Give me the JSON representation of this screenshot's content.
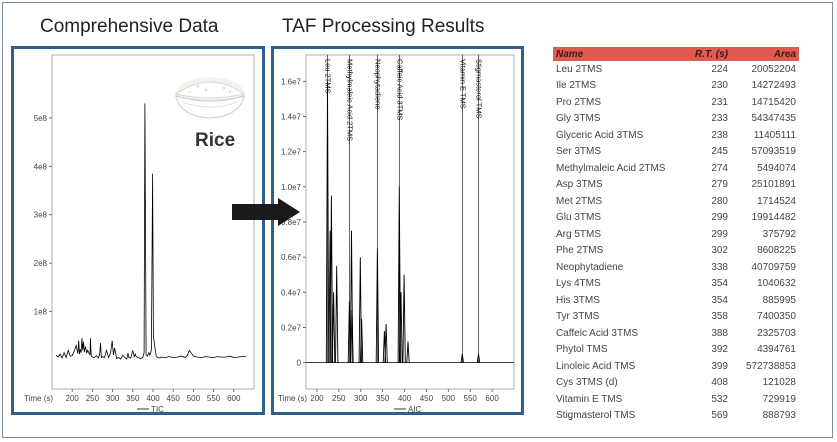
{
  "left_panel": {
    "title": "Comprehensive Data",
    "legend": "TIC",
    "label": "Rice"
  },
  "right_panel": {
    "title": "TAF Processing Results",
    "legend": "AIC"
  },
  "table": {
    "headers": {
      "name": "Name",
      "rt": "R.T. (s)",
      "area": "Area"
    },
    "rows": [
      {
        "name": "Leu 2TMS",
        "rt": "224",
        "area": "20052204"
      },
      {
        "name": "Ile 2TMS",
        "rt": "230",
        "area": "14272493"
      },
      {
        "name": "Pro 2TMS",
        "rt": "231",
        "area": "14715420"
      },
      {
        "name": "Gly 3TMS",
        "rt": "233",
        "area": "54347435"
      },
      {
        "name": "Glyceric Acid 3TMS",
        "rt": "238",
        "area": "11405111"
      },
      {
        "name": "Ser 3TMS",
        "rt": "245",
        "area": "57093519"
      },
      {
        "name": "Methylmaleic Acid 2TMS",
        "rt": "274",
        "area": "5494074"
      },
      {
        "name": "Asp 3TMS",
        "rt": "279",
        "area": "25101891"
      },
      {
        "name": "Met 2TMS",
        "rt": "280",
        "area": "1714524"
      },
      {
        "name": "Glu 3TMS",
        "rt": "299",
        "area": "19914482"
      },
      {
        "name": "Arg 5TMS",
        "rt": "299",
        "area": "375792"
      },
      {
        "name": "Phe 2TMS",
        "rt": "302",
        "area": "8608225"
      },
      {
        "name": "Neophytadiene",
        "rt": "338",
        "area": "40709759"
      },
      {
        "name": "Lys 4TMS",
        "rt": "354",
        "area": "1040632"
      },
      {
        "name": "His 3TMS",
        "rt": "354",
        "area": "885995"
      },
      {
        "name": "Tyr 3TMS",
        "rt": "358",
        "area": "7400350"
      },
      {
        "name": "Caffeic Acid 3TMS",
        "rt": "388",
        "area": "2325703"
      },
      {
        "name": "Phytol TMS",
        "rt": "392",
        "area": "4394761"
      },
      {
        "name": "Linoleic Acid TMS",
        "rt": "399",
        "area": "572738853"
      },
      {
        "name": "Cys 3TMS (d)",
        "rt": "408",
        "area": "121028"
      },
      {
        "name": "Vitamin E TMS",
        "rt": "532",
        "area": "729919"
      },
      {
        "name": "Stigmasterol TMS",
        "rt": "569",
        "area": "888793"
      }
    ]
  },
  "chart_data": [
    {
      "type": "line",
      "title": "Comprehensive Data",
      "xlabel": "Time (s)",
      "ylabel": "",
      "xlim": [
        150,
        650
      ],
      "ylim": [
        -60000000.0,
        630000000.0
      ],
      "x_ticks": [
        200,
        250,
        300,
        350,
        400,
        450,
        500,
        550,
        600
      ],
      "y_ticks": [
        {
          "value": 100000000.0,
          "label": "1e8"
        },
        {
          "value": 200000000.0,
          "label": "2e8"
        },
        {
          "value": 300000000.0,
          "label": "3e8"
        },
        {
          "value": 400000000.0,
          "label": "4e8"
        },
        {
          "value": 500000000.0,
          "label": "5e8"
        }
      ],
      "legend": "TIC",
      "legend_position": "bottom-center",
      "series": [
        {
          "name": "TIC",
          "color": "#000000",
          "x": [
            160,
            165,
            170,
            175,
            180,
            185,
            190,
            195,
            200,
            205,
            210,
            214,
            216,
            218,
            220,
            222,
            224,
            226,
            228,
            230,
            233,
            236,
            238,
            241,
            244,
            245,
            247,
            250,
            255,
            260,
            265,
            268,
            270,
            272,
            275,
            280,
            285,
            290,
            295,
            299,
            302,
            305,
            310,
            315,
            320,
            325,
            330,
            335,
            338,
            340,
            345,
            350,
            354,
            356,
            358,
            362,
            370,
            375,
            378,
            380,
            383,
            386,
            388,
            390,
            392,
            394,
            396,
            399,
            401,
            404,
            408,
            412,
            415,
            420,
            430,
            440,
            450,
            460,
            470,
            480,
            485,
            490,
            495,
            500,
            510,
            520,
            530,
            540,
            550,
            560,
            570,
            580,
            590,
            600,
            610,
            620,
            630
          ],
          "y": [
            10000000.0,
            6000000.0,
            12000000.0,
            4000000.0,
            15000000.0,
            5000000.0,
            20000000.0,
            8000000.0,
            9000000.0,
            18000000.0,
            30000000.0,
            13000000.0,
            40000000.0,
            12000000.0,
            22000000.0,
            15000000.0,
            45000000.0,
            20000000.0,
            38000000.0,
            16000000.0,
            28000000.0,
            14000000.0,
            20000000.0,
            15000000.0,
            10000000.0,
            45000000.0,
            8000000.0,
            6000000.0,
            5000000.0,
            9000000.0,
            4000000.0,
            12000000.0,
            35000000.0,
            5000000.0,
            7000000.0,
            5000000.0,
            20000000.0,
            5000000.0,
            15000000.0,
            40000000.0,
            10000000.0,
            25000000.0,
            3000000.0,
            5000000.0,
            2000000.0,
            10000000.0,
            5000000.0,
            2000000.0,
            14000000.0,
            5000000.0,
            4000000.0,
            20000000.0,
            6000000.0,
            12000000.0,
            8000000.0,
            5000000.0,
            3000000.0,
            6000000.0,
            15000000.0,
            530000000.0,
            10000000.0,
            8000000.0,
            12000000.0,
            15000000.0,
            10000000.0,
            14000000.0,
            22000000.0,
            385000000.0,
            50000000.0,
            30000000.0,
            8000000.0,
            5000000.0,
            4000000.0,
            6000000.0,
            5000000.0,
            7000000.0,
            5000000.0,
            6000000.0,
            8000000.0,
            5000000.0,
            9000000.0,
            20000000.0,
            14000000.0,
            8000000.0,
            6000000.0,
            5000000.0,
            7000000.0,
            6000000.0,
            5000000.0,
            7000000.0,
            6000000.0,
            6000000.0,
            8000000.0,
            5000000.0,
            6000000.0,
            7000000.0,
            7000000.0
          ]
        }
      ]
    },
    {
      "type": "line",
      "title": "TAF Processing Results",
      "xlabel": "Time (s)",
      "ylabel": "",
      "xlim": [
        175,
        650
      ],
      "ylim": [
        -1500000.0,
        17500000.0
      ],
      "x_ticks": [
        200,
        250,
        300,
        350,
        400,
        450,
        500,
        550,
        600
      ],
      "y_ticks": [
        {
          "value": 0,
          "label": "0"
        },
        {
          "value": 2000000.0,
          "label": "0.2e7"
        },
        {
          "value": 4000000.0,
          "label": "0.4e7"
        },
        {
          "value": 6000000.0,
          "label": "0.6e7"
        },
        {
          "value": 8000000.0,
          "label": "0.8e7"
        },
        {
          "value": 10000000.0,
          "label": "1.0e7"
        },
        {
          "value": 12000000.0,
          "label": "1.2e7"
        },
        {
          "value": 14000000.0,
          "label": "1.4e7"
        },
        {
          "value": 16000000.0,
          "label": "1.6e7"
        }
      ],
      "legend": "AIC",
      "legend_position": "bottom-center",
      "annotations": [
        {
          "label": "Leu 2TMS",
          "x": 224
        },
        {
          "label": "Methylmaleic Acid 2TMS",
          "x": 274
        },
        {
          "label": "Neophytadiene",
          "x": 338
        },
        {
          "label": "Caffeic Acid 3TMS",
          "x": 388
        },
        {
          "label": "Vitamin E TMS",
          "x": 532
        },
        {
          "label": "Stigmasterol TMS",
          "x": 569
        }
      ],
      "series": [
        {
          "name": "AIC",
          "color": "#000000",
          "peaks": [
            {
              "x": 224,
              "y": 16000000.0
            },
            {
              "x": 230,
              "y": 7500000.0
            },
            {
              "x": 233,
              "y": 9500000.0
            },
            {
              "x": 238,
              "y": 4000000.0
            },
            {
              "x": 245,
              "y": 5500000.0
            },
            {
              "x": 274,
              "y": 3500000.0
            },
            {
              "x": 279,
              "y": 7500000.0
            },
            {
              "x": 280,
              "y": 3000000.0
            },
            {
              "x": 299,
              "y": 6000000.0
            },
            {
              "x": 302,
              "y": 2500000.0
            },
            {
              "x": 338,
              "y": 6500000.0
            },
            {
              "x": 354,
              "y": 1800000.0
            },
            {
              "x": 358,
              "y": 2200000.0
            },
            {
              "x": 388,
              "y": 10000000.0
            },
            {
              "x": 392,
              "y": 4000000.0
            },
            {
              "x": 399,
              "y": 5000000.0
            },
            {
              "x": 408,
              "y": 1200000.0
            },
            {
              "x": 532,
              "y": 500000.0
            },
            {
              "x": 569,
              "y": 500000.0
            }
          ]
        }
      ]
    }
  ]
}
